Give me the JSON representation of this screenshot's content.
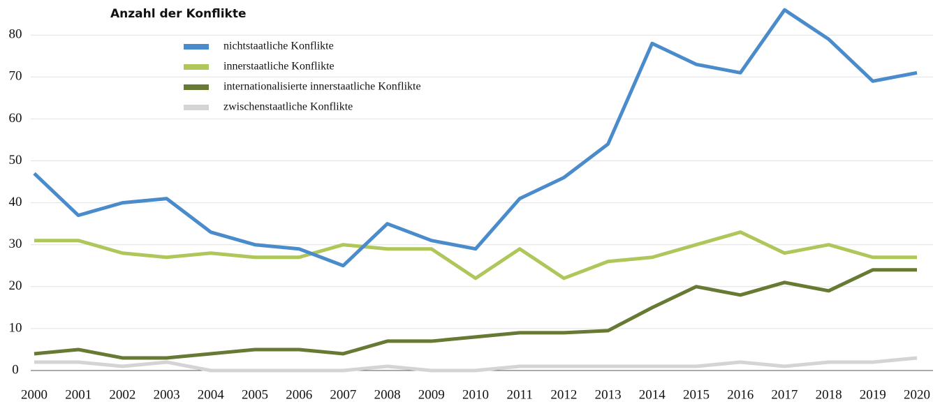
{
  "chart_data": {
    "type": "line",
    "title": "Anzahl der Konflikte",
    "categories": [
      "2000",
      "2001",
      "2002",
      "2003",
      "2004",
      "2005",
      "2006",
      "2007",
      "2008",
      "2009",
      "2010",
      "2011",
      "2012",
      "2013",
      "2014",
      "2015",
      "2016",
      "2017",
      "2018",
      "2019",
      "2020"
    ],
    "series": [
      {
        "name": "nichtstaatliche Konflikte",
        "color": "#4a8ccb",
        "values": [
          47,
          37,
          40,
          41,
          33,
          30,
          29,
          25,
          35,
          31,
          29,
          41,
          46,
          54,
          78,
          73,
          71,
          86,
          79,
          69,
          71
        ]
      },
      {
        "name": "innerstaatliche Konflikte",
        "color": "#aec65a",
        "values": [
          31,
          31,
          28,
          27,
          28,
          27,
          27,
          30,
          29,
          29,
          22,
          29,
          22,
          26,
          27,
          30,
          33,
          28,
          30,
          27,
          27
        ]
      },
      {
        "name": "internationalisierte innerstaatliche Konflikte",
        "color": "#667a34",
        "values": [
          4,
          5,
          3,
          3,
          4,
          5,
          5,
          4,
          7,
          7,
          8,
          9,
          9,
          9.5,
          15,
          20,
          18,
          21,
          19,
          24,
          24
        ]
      },
      {
        "name": "zwischenstaatliche Konflikte",
        "color": "#d4d4d4",
        "values": [
          2,
          2,
          1,
          2,
          0,
          0,
          0,
          0,
          1,
          0,
          0,
          1,
          1,
          1,
          1,
          1,
          2,
          1,
          2,
          2,
          3
        ]
      }
    ],
    "ylim": [
      0,
      85
    ],
    "yticks": [
      0,
      10,
      20,
      30,
      40,
      50,
      60,
      70,
      80
    ],
    "grid": true
  }
}
